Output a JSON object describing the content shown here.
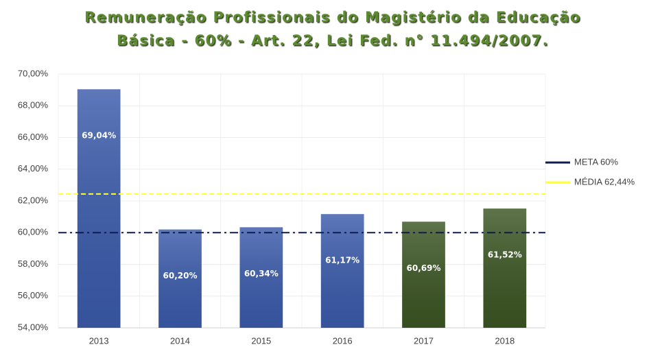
{
  "chart_data": {
    "type": "bar",
    "title": [
      "Remuneração Profissionais do Magistério da Educação",
      "Básica - 60% - Art. 22, Lei Fed. n° 11.494/2007."
    ],
    "categories": [
      "2013",
      "2014",
      "2015",
      "2016",
      "2017",
      "2018"
    ],
    "values": [
      69.04,
      60.2,
      60.34,
      61.17,
      60.69,
      61.52
    ],
    "value_labels": [
      "69,04%",
      "60,20%",
      "60,34%",
      "61,17%",
      "60,69%",
      "61,52%"
    ],
    "colors": [
      "#3a5aaa",
      "#3a5aaa",
      "#3a5aaa",
      "#3a5aaa",
      "#3b5523",
      "#3b5523"
    ],
    "ylim": [
      54,
      70
    ],
    "yticks": [
      {
        "value": 54,
        "label": "54,00%"
      },
      {
        "value": 56,
        "label": "56,00%"
      },
      {
        "value": 58,
        "label": "58,00%"
      },
      {
        "value": 60,
        "label": "60,00%"
      },
      {
        "value": 62,
        "label": "62,00%"
      },
      {
        "value": 64,
        "label": "64,00%"
      },
      {
        "value": 66,
        "label": "66,00%"
      },
      {
        "value": 68,
        "label": "68,00%"
      },
      {
        "value": 70,
        "label": "70,00%"
      }
    ],
    "grid": true,
    "reference_lines": [
      {
        "name": "META 60%",
        "value": 60,
        "color": "#0d1b4f",
        "style": "dashdot"
      },
      {
        "name": "MÉDIA 62,44%",
        "value": 62.44,
        "color": "#ffff33",
        "style": "dashed"
      }
    ],
    "legend": "right"
  }
}
